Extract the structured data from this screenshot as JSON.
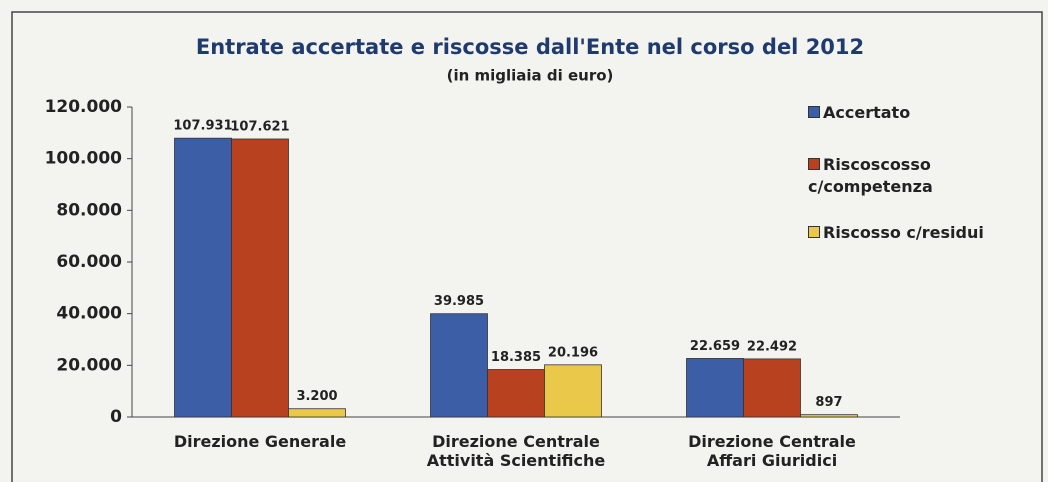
{
  "chart_data": {
    "type": "bar",
    "title": "Entrate accertate e riscosse dall'Ente nel corso del 2012",
    "subtitle": "(in migliaia di euro)",
    "categories": [
      "Direzione Generale",
      "Direzione Centrale\nAttività Scientifiche",
      "Direzione Centrale\nAffari Giuridici"
    ],
    "series": [
      {
        "name": "Accertato",
        "color": "#3b5ea6",
        "values": [
          107931,
          39985,
          22659
        ],
        "value_labels": [
          "107.931",
          "39.985",
          "22.659"
        ]
      },
      {
        "name": "Riscoscosso c/competenza",
        "color": "#b8421f",
        "values": [
          107621,
          18385,
          22492
        ],
        "value_labels": [
          "107.621",
          "18.385",
          "22.492"
        ]
      },
      {
        "name": "Riscosso c/residui",
        "color": "#e9c84a",
        "values": [
          3200,
          20196,
          897
        ],
        "value_labels": [
          "3.200",
          "20.196",
          "897"
        ]
      }
    ],
    "ylim": [
      0,
      120000
    ],
    "yticks": [
      0,
      {
        "value": 20000,
        "label": "20.000"
      },
      {
        "value": 40000,
        "label": "40.000"
      },
      {
        "value": 60000,
        "label": "60.000"
      },
      {
        "value": 80000,
        "label": "80.000"
      },
      {
        "value": 100000,
        "label": "100.000"
      },
      {
        "value": 120000,
        "label": "120.000"
      }
    ],
    "legend": "right"
  }
}
